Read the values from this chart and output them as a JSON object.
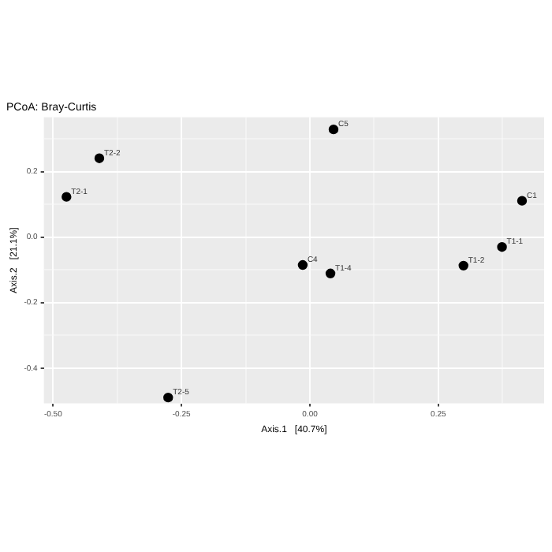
{
  "chart_data": {
    "type": "scatter",
    "title": "PCoA: Bray-Curtis",
    "xlabel": "Axis.1   [40.7%]",
    "ylabel": "Axis.2   [21.1%]",
    "series": [
      {
        "color": "#000000",
        "x": [
          0.413,
          0.374,
          0.299,
          -0.014,
          0.04,
          0.046,
          -0.474,
          -0.41,
          -0.276
        ],
        "values": [
          0.111,
          -0.03,
          -0.087,
          -0.085,
          -0.111,
          0.329,
          0.123,
          0.241,
          -0.49
        ]
      }
    ],
    "annotations": [
      {
        "text": "C1",
        "x": 0.413,
        "y": 0.111
      },
      {
        "text": "T1-1",
        "x": 0.374,
        "y": -0.03
      },
      {
        "text": "T1-2",
        "x": 0.299,
        "y": -0.087
      },
      {
        "text": "C4",
        "x": -0.014,
        "y": -0.085
      },
      {
        "text": "T1-4",
        "x": 0.04,
        "y": -0.111
      },
      {
        "text": "C5",
        "x": 0.046,
        "y": 0.329
      },
      {
        "text": "T2-1",
        "x": -0.474,
        "y": 0.123
      },
      {
        "text": "T2-2",
        "x": -0.41,
        "y": 0.241
      },
      {
        "text": "T2-5",
        "x": -0.276,
        "y": -0.49
      }
    ],
    "xlim": [
      -0.518,
      0.456
    ],
    "ylim": [
      -0.508,
      0.366
    ],
    "xticks": [
      {
        "value": -0.5,
        "label": "-0.50"
      },
      {
        "value": -0.375,
        "label": null
      },
      {
        "value": -0.25,
        "label": "-0.25"
      },
      {
        "value": -0.125,
        "label": null
      },
      {
        "value": 0,
        "label": "0.00"
      },
      {
        "value": 0.125,
        "label": null
      },
      {
        "value": 0.25,
        "label": "0.25"
      },
      {
        "value": 0.375,
        "label": null
      }
    ],
    "yticks": [
      {
        "value": -0.4,
        "label": "-0.4"
      },
      {
        "value": -0.3,
        "label": null
      },
      {
        "value": -0.2,
        "label": "-0.2"
      },
      {
        "value": -0.1,
        "label": null
      },
      {
        "value": 0,
        "label": "0.0"
      },
      {
        "value": 0.1,
        "label": null
      },
      {
        "value": 0.2,
        "label": "0.2"
      },
      {
        "value": 0.3,
        "label": null
      }
    ],
    "grid": true,
    "legend": false,
    "marker": "circle"
  }
}
